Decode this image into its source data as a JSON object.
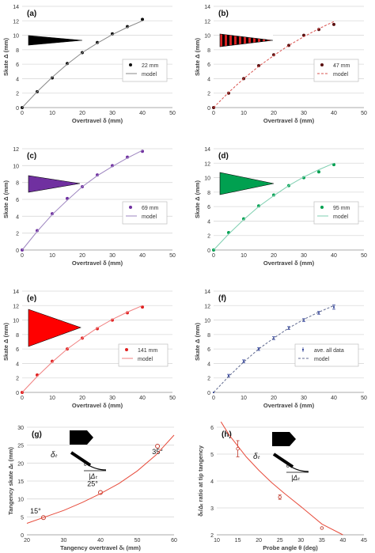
{
  "chart_data": [
    {
      "panel": "(a)",
      "type": "scatter",
      "xlabel": "Overtravel δ (mm)",
      "ylabel": "Skate Δ (mm)",
      "xlim": [
        0,
        50
      ],
      "ylim": [
        0,
        14
      ],
      "xticks": [
        0,
        10,
        20,
        30,
        40,
        50
      ],
      "yticks": [
        0,
        2,
        4,
        6,
        8,
        10,
        12,
        14
      ],
      "legend_position": "right-middle",
      "grid": "horizontal",
      "colors": {
        "points": "#111111",
        "model": "#888888",
        "icon_fill": "#000000",
        "icon_stripe": null
      },
      "series": [
        {
          "name": "22 mm",
          "kind": "points",
          "x": [
            0,
            5,
            10,
            15,
            20,
            25,
            30,
            35,
            40
          ],
          "y": [
            0,
            2.2,
            4.1,
            6.1,
            7.6,
            9.0,
            10.2,
            11.2,
            12.2
          ]
        },
        {
          "name": "model",
          "kind": "solid",
          "x": [
            0,
            5,
            10,
            15,
            20,
            25,
            30,
            35,
            40
          ],
          "y": [
            0,
            2.2,
            4.2,
            6.0,
            7.6,
            8.9,
            10.1,
            11.1,
            12.0
          ]
        }
      ]
    },
    {
      "panel": "(b)",
      "type": "scatter",
      "xlabel": "Overtravel δ (mm)",
      "ylabel": "Skate Δ (mm)",
      "xlim": [
        0,
        50
      ],
      "ylim": [
        0,
        14
      ],
      "xticks": [
        0,
        10,
        20,
        30,
        40,
        50
      ],
      "yticks": [
        0,
        2,
        4,
        6,
        8,
        10,
        12,
        14
      ],
      "legend_position": "right-middle",
      "grid": "horizontal",
      "colors": {
        "points": "#5a1010",
        "model": "#d9534f",
        "icon_fill": "#000000",
        "icon_stripe": "#d62020"
      },
      "series": [
        {
          "name": "47 mm",
          "kind": "points",
          "x": [
            0,
            5,
            10,
            15,
            20,
            25,
            30,
            35,
            40
          ],
          "y": [
            0,
            2.0,
            4.0,
            5.8,
            7.3,
            8.6,
            10.0,
            10.8,
            11.5
          ]
        },
        {
          "name": "model",
          "kind": "dashed",
          "x": [
            0,
            5,
            10,
            15,
            20,
            25,
            30,
            35,
            40
          ],
          "y": [
            0,
            2.1,
            4.0,
            5.7,
            7.2,
            8.6,
            9.8,
            10.9,
            11.9
          ]
        }
      ]
    },
    {
      "panel": "(c)",
      "type": "scatter",
      "xlabel": "Overtravel δ (mm)",
      "ylabel": "Skate Δ (mm)",
      "xlim": [
        0,
        50
      ],
      "ylim": [
        0,
        12
      ],
      "xticks": [
        0,
        10,
        20,
        30,
        40,
        50
      ],
      "yticks": [
        0,
        2,
        4,
        6,
        8,
        10,
        12
      ],
      "legend_position": "right-middle",
      "grid": "horizontal",
      "colors": {
        "points": "#7030a0",
        "model": "#9e86c0",
        "icon_fill": "#7030a0",
        "icon_stripe": null
      },
      "series": [
        {
          "name": "69 mm",
          "kind": "points",
          "x": [
            0,
            5,
            10,
            15,
            20,
            25,
            30,
            35,
            40
          ],
          "y": [
            0,
            2.3,
            4.3,
            6.1,
            7.5,
            8.9,
            10.0,
            11.0,
            11.7
          ]
        },
        {
          "name": "model",
          "kind": "solid",
          "x": [
            0,
            5,
            10,
            15,
            20,
            25,
            30,
            35,
            40
          ],
          "y": [
            0,
            2.2,
            4.2,
            5.9,
            7.5,
            8.8,
            9.9,
            10.9,
            11.8
          ]
        }
      ]
    },
    {
      "panel": "(d)",
      "type": "scatter",
      "xlabel": "Overtravel δ (mm)",
      "ylabel": "Skate Δ (mm)",
      "xlim": [
        0,
        50
      ],
      "ylim": [
        0,
        14
      ],
      "xticks": [
        0,
        10,
        20,
        30,
        40,
        50
      ],
      "yticks": [
        0,
        2,
        4,
        6,
        8,
        10,
        12,
        14
      ],
      "legend_position": "right-middle",
      "grid": "horizontal",
      "colors": {
        "points": "#00a050",
        "model": "#7fcfb0",
        "icon_fill": "#00a050",
        "icon_stripe": null
      },
      "series": [
        {
          "name": "95 mm",
          "kind": "points",
          "x": [
            0,
            5,
            10,
            15,
            20,
            25,
            30,
            35,
            40
          ],
          "y": [
            0,
            2.4,
            4.3,
            6.1,
            7.6,
            8.9,
            10.0,
            10.8,
            11.8
          ]
        },
        {
          "name": "model",
          "kind": "solid",
          "x": [
            0,
            5,
            10,
            15,
            20,
            25,
            30,
            35,
            40
          ],
          "y": [
            0,
            2.2,
            4.2,
            6.0,
            7.5,
            8.9,
            10.1,
            11.1,
            12.0
          ]
        }
      ]
    },
    {
      "panel": "(e)",
      "type": "scatter",
      "xlabel": "Overtravel δ (mm)",
      "ylabel": "Skate Δ (mm)",
      "xlim": [
        0,
        50
      ],
      "ylim": [
        0,
        14
      ],
      "xticks": [
        0,
        10,
        20,
        30,
        40,
        50
      ],
      "yticks": [
        0,
        2,
        4,
        6,
        8,
        10,
        12,
        14
      ],
      "legend_position": "right-middle",
      "grid": "horizontal",
      "colors": {
        "points": "#e02020",
        "model": "#f08080",
        "icon_fill": "#ff0000",
        "icon_stripe": null
      },
      "series": [
        {
          "name": "141 mm",
          "kind": "points",
          "x": [
            0,
            5,
            10,
            15,
            20,
            25,
            30,
            35,
            40
          ],
          "y": [
            0,
            2.4,
            4.3,
            6.0,
            7.5,
            8.8,
            10.0,
            11.0,
            11.8
          ]
        },
        {
          "name": "model",
          "kind": "solid",
          "x": [
            0,
            5,
            10,
            15,
            20,
            25,
            30,
            35,
            40
          ],
          "y": [
            0,
            2.2,
            4.2,
            6.0,
            7.5,
            8.9,
            10.1,
            11.1,
            12.0
          ]
        }
      ]
    },
    {
      "panel": "(f)",
      "type": "scatter",
      "xlabel": "Overtravel δ (mm)",
      "ylabel": "Skate Δ (mm)",
      "xlim": [
        0,
        50
      ],
      "ylim": [
        0,
        14
      ],
      "xticks": [
        0,
        10,
        20,
        30,
        40,
        50
      ],
      "yticks": [
        0,
        2,
        4,
        6,
        8,
        10,
        12,
        14
      ],
      "legend_position": "right-middle",
      "grid": "horizontal",
      "colors": {
        "points": "#4050a0",
        "model": "#606a90",
        "icon_fill": null,
        "icon_stripe": null
      },
      "series": [
        {
          "name": "ave. all data",
          "kind": "errorbars",
          "x": [
            0,
            5,
            10,
            15,
            20,
            25,
            30,
            35,
            40
          ],
          "y": [
            0,
            2.3,
            4.3,
            6.0,
            7.5,
            8.9,
            10.0,
            11.0,
            11.8
          ],
          "err": [
            0,
            0.2,
            0.2,
            0.2,
            0.2,
            0.2,
            0.2,
            0.2,
            0.3
          ]
        },
        {
          "name": "model",
          "kind": "dashed",
          "x": [
            0,
            5,
            10,
            15,
            20,
            25,
            30,
            35,
            40
          ],
          "y": [
            0,
            2.2,
            4.2,
            6.0,
            7.5,
            8.9,
            10.1,
            11.1,
            12.0
          ]
        }
      ]
    },
    {
      "panel": "(g)",
      "type": "scatter",
      "xlabel": "Tangency overtravel δₜ (mm)",
      "ylabel": "Tangency skate Δₜ (mm)",
      "xlim": [
        20,
        60
      ],
      "ylim": [
        0,
        30
      ],
      "xticks": [
        20,
        30,
        40,
        50,
        60
      ],
      "yticks": [
        0,
        5,
        10,
        15,
        20,
        25,
        30
      ],
      "grid": "horizontal",
      "colors": {
        "points": "#c0392b",
        "model": "#e74c3c"
      },
      "inset_symbols": {
        "delta": "δₜ",
        "skate": "|Δₜ",
        "theta": "θ"
      },
      "series": [
        {
          "name": "",
          "kind": "points",
          "x": [
            24.5,
            40,
            55.5
          ],
          "y": [
            4.8,
            11.8,
            24.7
          ],
          "labels": [
            "15°",
            "25°",
            "35°"
          ]
        },
        {
          "name": "",
          "kind": "solid",
          "x": [
            20,
            25,
            30,
            35,
            40,
            45,
            50,
            55,
            60
          ],
          "y": [
            3.2,
            5.0,
            6.8,
            9.0,
            11.5,
            14.3,
            17.8,
            22.2,
            27.8
          ]
        }
      ]
    },
    {
      "panel": "(h)",
      "type": "scatter",
      "xlabel": "Probe angle θ (deg)",
      "ylabel": "δₜ/Δₜ ratio at tip tangency",
      "xlim": [
        10,
        45
      ],
      "ylim": [
        2,
        6
      ],
      "xticks": [
        10,
        15,
        20,
        25,
        30,
        35,
        40,
        45
      ],
      "yticks": [
        2,
        3,
        4,
        5,
        6
      ],
      "grid": "horizontal",
      "colors": {
        "points": "#c0392b",
        "model": "#e74c3c"
      },
      "inset_symbols": {
        "delta": "δₜ",
        "skate": "|Δₜ",
        "theta": "θ"
      },
      "series": [
        {
          "name": "",
          "kind": "errorbars",
          "x": [
            15,
            25,
            35
          ],
          "y": [
            5.2,
            3.4,
            2.25
          ],
          "err": [
            0.3,
            0.08,
            0.03
          ]
        },
        {
          "name": "",
          "kind": "solid",
          "x": [
            11,
            13,
            15,
            17,
            20,
            23,
            26,
            30,
            35,
            40
          ],
          "y": [
            6.2,
            5.7,
            5.3,
            4.9,
            4.4,
            3.95,
            3.55,
            3.05,
            2.4,
            2.0
          ]
        }
      ]
    }
  ]
}
